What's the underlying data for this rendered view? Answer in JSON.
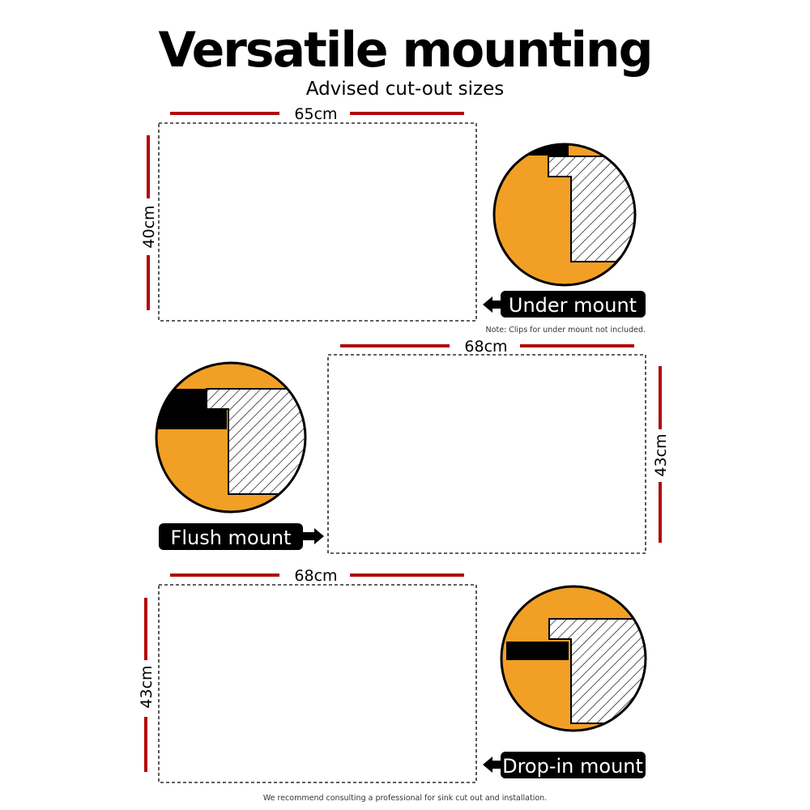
{
  "header": {
    "title": "Versatile mounting",
    "subtitle": "Advised cut-out sizes"
  },
  "colors": {
    "accent_red": "#b00a0a",
    "orange": "#f29f26",
    "black": "#000000"
  },
  "sections": [
    {
      "name": "Under mount",
      "width": "65cm",
      "height": "40cm",
      "note": "Note: Clips for under mount not included.",
      "arrow": "arrow-left-icon"
    },
    {
      "name": "Flush mount",
      "width": "68cm",
      "height": "43cm",
      "arrow": "arrow-right-icon"
    },
    {
      "name": "Drop-in mount",
      "width": "68cm",
      "height": "43cm",
      "arrow": "arrow-left-icon"
    }
  ],
  "footer": {
    "note": "We recommend consulting a professional for sink cut out and installation."
  }
}
